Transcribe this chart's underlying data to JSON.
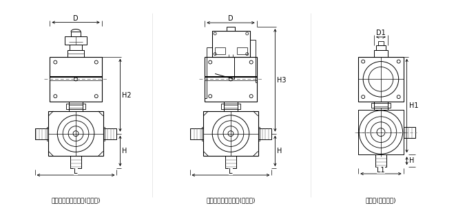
{
  "bg_color": "#ffffff",
  "line_color": "#000000",
  "gray": "#888888",
  "title1": "气动三通内螺纹球阀(开关型)",
  "title2": "气动三通内螺纹球阀(调节型)",
  "title3": "左视图(不带附件)",
  "fig_width": 6.62,
  "fig_height": 3.03,
  "dpi": 100
}
